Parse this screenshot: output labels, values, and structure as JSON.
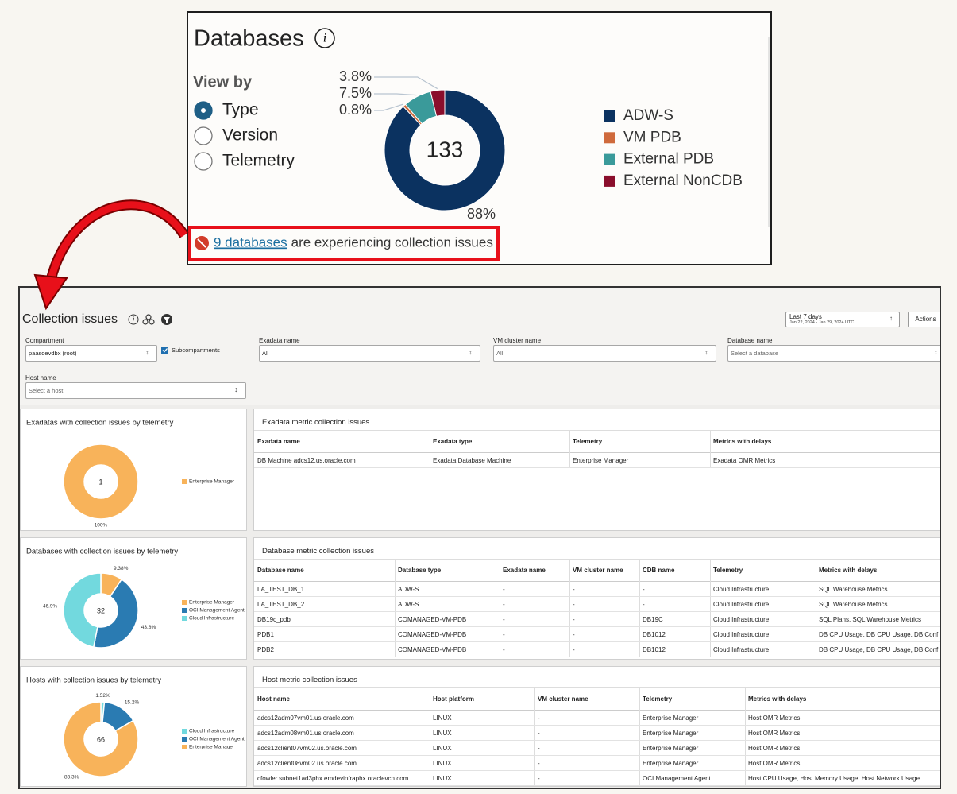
{
  "databases_card": {
    "title": "Databases",
    "view_by": {
      "label": "View by",
      "options": [
        "Type",
        "Version",
        "Telemetry"
      ],
      "selected": 0
    },
    "chart": {
      "type": "pie",
      "center_label": 133,
      "categories": [
        "ADW-S",
        "VM PDB",
        "External PDB",
        "External NonCDB"
      ],
      "values": [
        88,
        0.8,
        7.5,
        3.8
      ],
      "value_labels": [
        "88%",
        "0.8%",
        "7.5%",
        "3.8%"
      ],
      "colors": [
        "#0b3260",
        "#cf6a3c",
        "#3a9a9a",
        "#8a0e2c"
      ]
    },
    "issue_notice": {
      "link": "9 databases",
      "text": "are experiencing collection issues"
    }
  },
  "collection_issues": {
    "title": "Collection issues",
    "time_range": {
      "label": "Last 7 days",
      "dates": "Jan 22, 2024 - Jan 29, 2024 UTC"
    },
    "actions": "Actions",
    "filters": {
      "compartment": {
        "label": "Compartment",
        "value": "paasdevdbx (root)"
      },
      "subcompartments": {
        "label": "Subcompartments",
        "checked": true
      },
      "exadata_name": {
        "label": "Exadata name",
        "value": "All"
      },
      "vm_cluster_name": {
        "label": "VM cluster name",
        "value": "All"
      },
      "database_name": {
        "label": "Database name",
        "value": "Select a database"
      },
      "host_name": {
        "label": "Host name",
        "value": "Select a host"
      }
    },
    "sections": [
      {
        "chart": {
          "type": "pie",
          "title": "Exadatas with collection issues by telemetry",
          "center_label": 1,
          "categories": [
            "Enterprise Manager"
          ],
          "values": [
            100
          ],
          "value_labels": [
            "100%"
          ],
          "colors": [
            "#f8b35a"
          ]
        },
        "table": {
          "title": "Exadata metric collection issues",
          "columns": [
            "Exadata name",
            "Exadata type",
            "Telemetry",
            "Metrics with delays"
          ],
          "rows": [
            [
              "DB Machine adcs12.us.oracle.com",
              "Exadata Database Machine",
              "Enterprise Manager",
              "Exadata OMR Metrics"
            ]
          ]
        }
      },
      {
        "chart": {
          "type": "pie",
          "title": "Databases with collection issues by telemetry",
          "center_label": 32,
          "categories": [
            "Enterprise Manager",
            "OCI Management Agent",
            "Cloud Infrastructure"
          ],
          "values": [
            9.38,
            43.8,
            46.9
          ],
          "value_labels": [
            "9.38%",
            "43.8%",
            "46.9%"
          ],
          "colors": [
            "#f8b35a",
            "#2a7bb2",
            "#72d9de"
          ]
        },
        "table": {
          "title": "Database metric collection issues",
          "columns": [
            "Database name",
            "Database type",
            "Exadata name",
            "VM cluster name",
            "CDB name",
            "Telemetry",
            "Metrics with delays"
          ],
          "rows": [
            [
              "LA_TEST_DB_1",
              "ADW-S",
              "-",
              "-",
              "-",
              "Cloud Infrastructure",
              "SQL Warehouse Metrics"
            ],
            [
              "LA_TEST_DB_2",
              "ADW-S",
              "-",
              "-",
              "-",
              "Cloud Infrastructure",
              "SQL Warehouse Metrics"
            ],
            [
              "DB19c_pdb",
              "COMANAGED-VM-PDB",
              "-",
              "-",
              "DB19C",
              "Cloud Infrastructure",
              "SQL Plans, SQL Warehouse Metrics"
            ],
            [
              "PDB1",
              "COMANAGED-VM-PDB",
              "-",
              "-",
              "DB1012",
              "Cloud Infrastructure",
              "DB CPU Usage, DB CPU Usage, DB Conf"
            ],
            [
              "PDB2",
              "COMANAGED-VM-PDB",
              "-",
              "-",
              "DB1012",
              "Cloud Infrastructure",
              "DB CPU Usage, DB CPU Usage, DB Conf"
            ]
          ]
        }
      },
      {
        "chart": {
          "type": "pie",
          "title": "Hosts with collection issues by telemetry",
          "center_label": 66,
          "categories": [
            "Cloud Infrastructure",
            "OCI Management Agent",
            "Enterprise Manager"
          ],
          "values": [
            1.52,
            15.2,
            83.3
          ],
          "value_labels": [
            "1.52%",
            "15.2%",
            "83.3%"
          ],
          "colors": [
            "#72d9de",
            "#2a7bb2",
            "#f8b35a"
          ]
        },
        "table": {
          "title": "Host metric collection issues",
          "columns": [
            "Host name",
            "Host platform",
            "VM cluster name",
            "Telemetry",
            "Metrics with delays"
          ],
          "rows": [
            [
              "adcs12adm07vm01.us.oracle.com",
              "LINUX",
              "-",
              "Enterprise Manager",
              "Host OMR Metrics"
            ],
            [
              "adcs12adm08vm01.us.oracle.com",
              "LINUX",
              "-",
              "Enterprise Manager",
              "Host OMR Metrics"
            ],
            [
              "adcs12client07vm02.us.oracle.com",
              "LINUX",
              "-",
              "Enterprise Manager",
              "Host OMR Metrics"
            ],
            [
              "adcs12client08vm02.us.oracle.com",
              "LINUX",
              "-",
              "Enterprise Manager",
              "Host OMR Metrics"
            ],
            [
              "cfowler.subnet1ad3phx.emdevinfraphx.oraclevcn.com",
              "LINUX",
              "-",
              "OCI Management Agent",
              "Host CPU Usage, Host Memory Usage, Host Network Usage"
            ]
          ]
        }
      }
    ]
  }
}
